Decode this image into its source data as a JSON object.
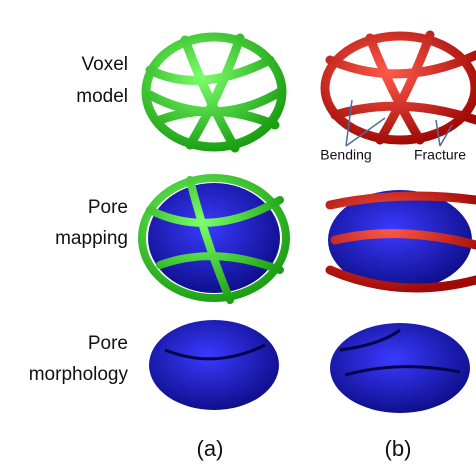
{
  "row_labels": [
    {
      "lines": [
        "Voxel",
        "model"
      ]
    },
    {
      "lines": [
        "Pore",
        "mapping"
      ]
    },
    {
      "lines": [
        "Pore",
        "morphology"
      ]
    }
  ],
  "annotations": [
    "Bending",
    "Fracture"
  ],
  "captions": [
    "(a)",
    "(b)"
  ]
}
